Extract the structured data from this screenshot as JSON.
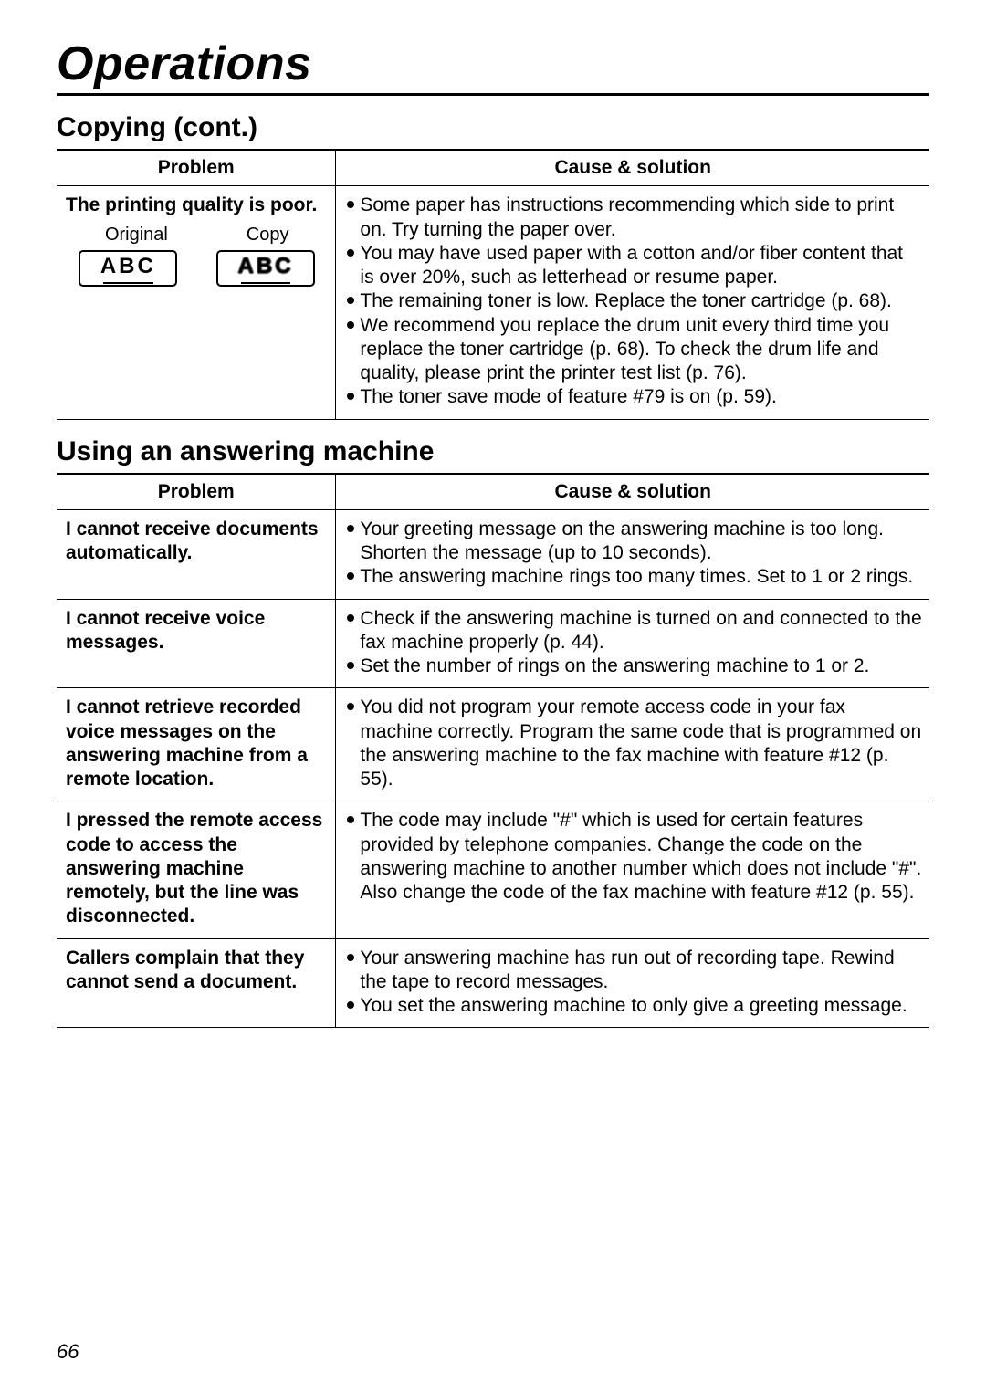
{
  "page": {
    "title": "Operations",
    "number": "66"
  },
  "sections": {
    "copying": {
      "title": "Copying (cont.)",
      "headers": {
        "problem": "Problem",
        "solution": "Cause & solution"
      },
      "rows": [
        {
          "problem_title": "The printing quality is poor.",
          "illustration": {
            "original_label": "Original",
            "copy_label": "Copy",
            "abc": "ABC"
          },
          "bullets": [
            "Some paper has instructions recommending which side to print on. Try turning the paper over.",
            "You may have used paper with a cotton and/or fiber content that is over 20%, such as letterhead or resume paper.",
            "The remaining toner is low. Replace the toner cartridge (p. 68).",
            "We recommend you replace the drum unit every third time you replace the toner cartridge (p. 68). To check the drum life and quality, please print the printer test list (p. 76).",
            "The toner save mode of feature #79 is on (p. 59)."
          ]
        }
      ]
    },
    "answering": {
      "title": "Using an answering machine",
      "headers": {
        "problem": "Problem",
        "solution": "Cause & solution"
      },
      "rows": [
        {
          "problem": "I cannot receive documents automatically.",
          "bullets": [
            "Your greeting message on the answering machine is too long. Shorten the message (up to 10 seconds).",
            "The answering machine rings too many times. Set to 1 or 2 rings."
          ]
        },
        {
          "problem": "I cannot receive voice messages.",
          "bullets": [
            "Check if the answering machine is turned on and connected to the fax machine properly (p. 44).",
            "Set the number of rings on the answering machine to 1 or 2."
          ]
        },
        {
          "problem": "I cannot retrieve recorded voice messages on the answering machine from a remote location.",
          "bullets": [
            "You did not program your remote access code in your fax machine correctly. Program the same code that is programmed on the answering machine to the fax machine with feature #12 (p. 55)."
          ]
        },
        {
          "problem": "I pressed the remote access code to access the answering machine remotely, but the line was disconnected.",
          "bullets": [
            "The code may include \"#\" which is used for certain features provided by telephone companies. Change the code on the answering machine to another number which does not include \"#\". Also change the code of the fax machine with feature #12 (p. 55)."
          ]
        },
        {
          "problem": "Callers complain that they cannot send a document.",
          "bullets": [
            "Your answering machine has run out of recording tape. Rewind the tape to record messages.",
            "You set the answering machine to only give a greeting message."
          ]
        }
      ]
    }
  }
}
